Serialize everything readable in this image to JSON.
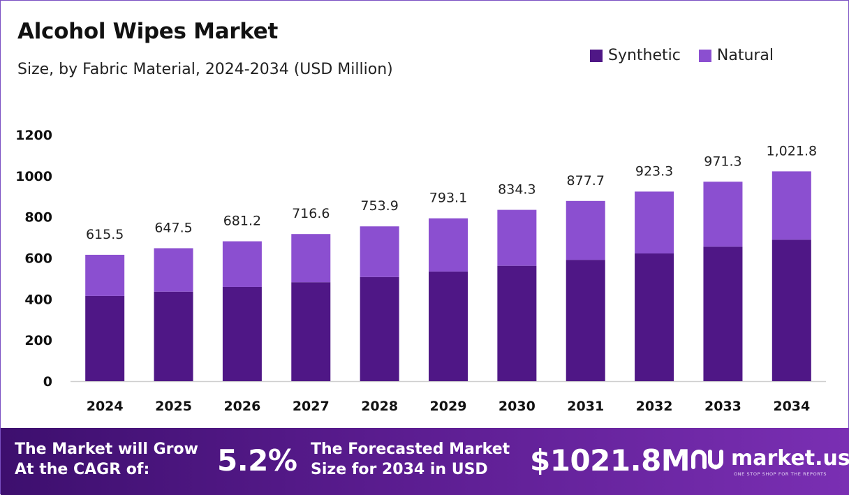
{
  "colors": {
    "synthetic": "#4f1786",
    "natural": "#8b4fd0",
    "axis": "#cfcfcf"
  },
  "legend": [
    {
      "label": "Synthetic",
      "color": "#4f1786"
    },
    {
      "label": "Natural",
      "color": "#8b4fd0"
    }
  ],
  "chart_data": {
    "type": "bar",
    "stacked": true,
    "title": "Alcohol Wipes Market",
    "subtitle": "Size, by Fabric Material, 2024-2034 (USD Million)",
    "xlabel": "",
    "ylabel": "",
    "ylim": [
      0,
      1200
    ],
    "yticks": [
      0,
      200,
      400,
      600,
      800,
      1000,
      1200
    ],
    "ytick_labels": [
      "0",
      "200",
      "400",
      "600",
      "800",
      "1000",
      "1200"
    ],
    "categories": [
      "2024",
      "2025",
      "2026",
      "2027",
      "2028",
      "2029",
      "2030",
      "2031",
      "2032",
      "2033",
      "2034"
    ],
    "series": [
      {
        "name": "Synthetic",
        "values": [
          415,
          436,
          459,
          482,
          507,
          534,
          562,
          591,
          622,
          655,
          689
        ]
      },
      {
        "name": "Natural",
        "values": [
          200.5,
          211.5,
          222.2,
          234.6,
          246.9,
          259.1,
          272.3,
          286.7,
          301.3,
          316.3,
          332.8
        ]
      }
    ],
    "totals": [
      615.5,
      647.5,
      681.2,
      716.6,
      753.9,
      793.1,
      834.3,
      877.7,
      923.3,
      971.3,
      1021.8
    ],
    "total_labels": [
      "615.5",
      "647.5",
      "681.2",
      "716.6",
      "753.9",
      "793.1",
      "834.3",
      "877.7",
      "923.3",
      "971.3",
      "1,021.8"
    ],
    "grid": false,
    "legend_position": "top-right"
  },
  "footer": {
    "cagr_text": "The Market will Grow\nAt the CAGR of:",
    "cagr_value": "5.2%",
    "forecast_text": "The Forecasted Market\nSize for 2034 in USD",
    "forecast_value": "$1021.8M",
    "logo_text": "market.us",
    "logo_tagline": "ONE STOP SHOP FOR THE REPORTS"
  }
}
